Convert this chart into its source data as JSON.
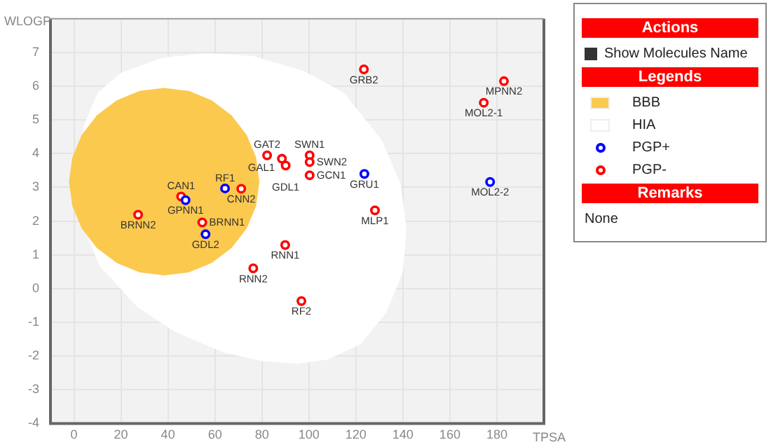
{
  "chart_data": {
    "type": "scatter",
    "xlabel": "TPSA",
    "ylabel": "WLOGP",
    "legend_title": "Legends",
    "legend": "right",
    "grid": true,
    "marker": "circle",
    "xlim": [
      -10,
      200
    ],
    "xticks": [
      0,
      20,
      40,
      60,
      80,
      100,
      120,
      140,
      160,
      180
    ],
    "ylim": [
      -4,
      8
    ],
    "yticks": [
      -4,
      -3,
      -2,
      -1,
      0,
      1,
      2,
      3,
      4,
      5,
      6,
      7
    ],
    "series": [
      {
        "name": "BBB",
        "type": "area",
        "marker": "none",
        "color": "#fcc94f",
        "x": [
          78.9,
          77.52,
          73.47,
          67.04,
          58.65,
          48.88,
          38.4,
          27.92,
          18.15,
          9.76,
          3.33,
          -0.72,
          -2.1,
          -0.72,
          3.33,
          9.76,
          18.15,
          27.92,
          38.4,
          48.88,
          58.65,
          67.04,
          73.47,
          77.52,
          78.9
        ],
        "values": [
          3.17,
          3.89,
          4.56,
          5.14,
          5.58,
          5.86,
          5.95,
          5.86,
          5.58,
          5.14,
          4.56,
          3.89,
          3.17,
          2.45,
          1.78,
          1.2,
          0.76,
          0.48,
          0.39,
          0.48,
          0.76,
          1.2,
          1.78,
          2.45,
          3.17
        ]
      },
      {
        "name": "HIA",
        "type": "area",
        "marker": "none",
        "color": "#ffffff",
        "x": [
          4,
          10,
          20,
          38,
          56,
          76,
          98,
          115,
          131,
          139,
          141.5,
          140,
          133,
          122,
          108,
          95,
          80,
          64,
          50,
          42,
          27,
          11,
          4,
          4
        ],
        "values": [
          4.8,
          5.8,
          6.4,
          6.85,
          6.98,
          6.9,
          6.45,
          5.8,
          4.4,
          3.1,
          1.8,
          0.5,
          -0.7,
          -1.65,
          -2.1,
          -2.23,
          -2.15,
          -1.9,
          -1.5,
          -1.24,
          -0.55,
          0.67,
          1.8,
          4.8
        ]
      },
      {
        "name": "PGP+",
        "color": "#0000ff",
        "x": [
          47.5,
          64.3,
          56.0,
          123.6,
          177.1
        ],
        "values": [
          2.62,
          2.97,
          1.61,
          3.4,
          3.16
        ]
      },
      {
        "name": "PGP-",
        "color": "#ff0000",
        "x": [
          27.3,
          45.6,
          71.2,
          54.6,
          82.2,
          88.5,
          90.1,
          100.3,
          100.3,
          100.3,
          128.1,
          89.9,
          123.4,
          174.4,
          183.0,
          76.3,
          96.8
        ],
        "values": [
          2.19,
          2.73,
          2.96,
          1.96,
          3.95,
          3.85,
          3.65,
          3.95,
          3.75,
          3.36,
          2.32,
          1.29,
          6.5,
          5.51,
          6.15,
          0.6,
          -0.37
        ]
      }
    ],
    "annotations": [
      "Actions",
      "Show Molecules Name",
      "Remarks",
      "None",
      {
        "text": "GPNN1",
        "x": 47.5,
        "y": 2.62
      },
      {
        "text": "RF1",
        "x": 64.3,
        "y": 2.97
      },
      {
        "text": "GDL2",
        "x": 56.0,
        "y": 1.61
      },
      {
        "text": "GRU1",
        "x": 123.6,
        "y": 3.4
      },
      {
        "text": "MOL2-2",
        "x": 177.1,
        "y": 3.16
      },
      {
        "text": "BRNN2",
        "x": 27.3,
        "y": 2.19
      },
      {
        "text": "CAN1",
        "x": 45.6,
        "y": 2.73
      },
      {
        "text": "CNN2",
        "x": 71.2,
        "y": 2.96
      },
      {
        "text": "BRNN1",
        "x": 54.6,
        "y": 1.96
      },
      {
        "text": "GAT2",
        "x": 82.2,
        "y": 3.95
      },
      {
        "text": "GAL1",
        "x": 88.5,
        "y": 3.85
      },
      {
        "text": "GDL1",
        "x": 90.1,
        "y": 3.65
      },
      {
        "text": "SWN1",
        "x": 100.3,
        "y": 3.95
      },
      {
        "text": "SWN2",
        "x": 100.3,
        "y": 3.75
      },
      {
        "text": "GCN1",
        "x": 100.3,
        "y": 3.36
      },
      {
        "text": "MLP1",
        "x": 128.1,
        "y": 2.32
      },
      {
        "text": "RNN1",
        "x": 89.9,
        "y": 1.29
      },
      {
        "text": "GRB2",
        "x": 123.4,
        "y": 6.5
      },
      {
        "text": "MOL2-1",
        "x": 174.4,
        "y": 5.51
      },
      {
        "text": "MPNN2",
        "x": 183.0,
        "y": 6.15
      },
      {
        "text": "RNN2",
        "x": 76.3,
        "y": 0.6
      },
      {
        "text": "RF2",
        "x": 96.8,
        "y": -0.37
      }
    ]
  }
}
